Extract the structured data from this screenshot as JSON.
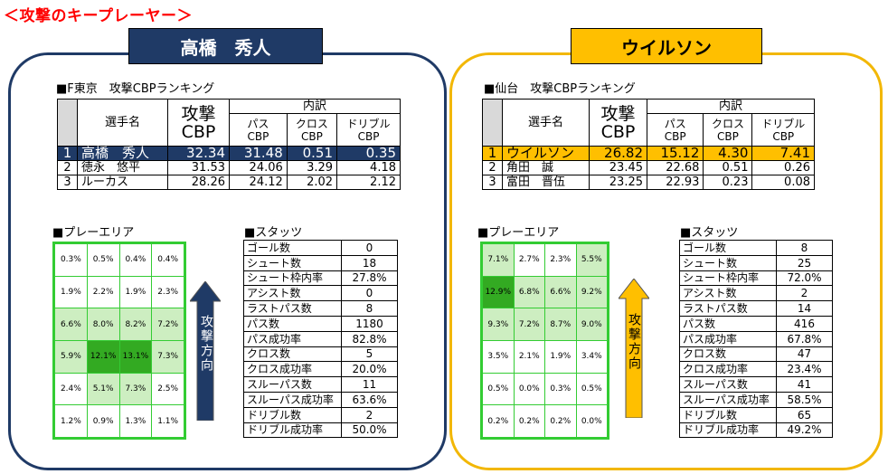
{
  "page_title": "＜攻撃のキープレーヤー＞",
  "left": {
    "name": "高橋　秀人",
    "ranking_title": "■F東京　攻撃CBPランキング",
    "table_headers": {
      "player": "選手名",
      "attack": "攻撃",
      "cbp": "CBP",
      "breakdown": "内訳",
      "pass": "パス",
      "cross": "クロス",
      "dribble": "ドリブル",
      "cbp_sub": "CBP"
    },
    "rows": [
      {
        "rank": "1",
        "name": "高橋　秀人",
        "total": "32.34",
        "pass": "31.48",
        "cross": "0.51",
        "dribble": "0.35"
      },
      {
        "rank": "2",
        "name": "徳永　悠平",
        "total": "31.53",
        "pass": "24.06",
        "cross": "3.29",
        "dribble": "4.18"
      },
      {
        "rank": "3",
        "name": "ルーカス",
        "total": "28.26",
        "pass": "24.12",
        "cross": "2.02",
        "dribble": "2.12"
      }
    ],
    "play_area_title": "■プレーエリア",
    "play_area": [
      [
        "0.3%",
        "0.5%",
        "0.4%",
        "0.4%"
      ],
      [
        "1.9%",
        "2.2%",
        "1.9%",
        "2.3%"
      ],
      [
        "6.6%",
        "8.0%",
        "8.2%",
        "7.2%"
      ],
      [
        "5.9%",
        "12.1%",
        "13.1%",
        "7.3%"
      ],
      [
        "2.4%",
        "5.1%",
        "7.3%",
        "2.5%"
      ],
      [
        "1.2%",
        "0.9%",
        "1.3%",
        "1.1%"
      ]
    ],
    "arrow_label": "攻撃方向",
    "arrow_color": "#1f3a66",
    "stats_title": "■スタッツ",
    "stats": [
      {
        "label": "ゴール数",
        "value": "0"
      },
      {
        "label": "シュート数",
        "value": "18"
      },
      {
        "label": "シュート枠内率",
        "value": "27.8%"
      },
      {
        "label": "アシスト数",
        "value": "0"
      },
      {
        "label": "ラストパス数",
        "value": "8"
      },
      {
        "label": "パス数",
        "value": "1180"
      },
      {
        "label": "パス成功率",
        "value": "82.8%"
      },
      {
        "label": "クロス数",
        "value": "5"
      },
      {
        "label": "クロス成功率",
        "value": "20.0%"
      },
      {
        "label": "スルーパス数",
        "value": "11"
      },
      {
        "label": "スルーパス成功率",
        "value": "63.6%"
      },
      {
        "label": "ドリブル数",
        "value": "2"
      },
      {
        "label": "ドリブル成功率",
        "value": "50.0%"
      }
    ]
  },
  "right": {
    "name": "ウイルソン",
    "ranking_title": "■仙台　攻撃CBPランキング",
    "table_headers": {
      "player": "選手名",
      "attack": "攻撃",
      "cbp": "CBP",
      "breakdown": "内訳",
      "pass": "パス",
      "cross": "クロス",
      "dribble": "ドリブル",
      "cbp_sub": "CBP"
    },
    "rows": [
      {
        "rank": "1",
        "name": "ウイルソン",
        "total": "26.82",
        "pass": "15.12",
        "cross": "4.30",
        "dribble": "7.41"
      },
      {
        "rank": "2",
        "name": "角田　誠",
        "total": "23.45",
        "pass": "22.68",
        "cross": "0.51",
        "dribble": "0.26"
      },
      {
        "rank": "3",
        "name": "富田　晋伍",
        "total": "23.25",
        "pass": "22.93",
        "cross": "0.23",
        "dribble": "0.08"
      }
    ],
    "play_area_title": "■プレーエリア",
    "play_area": [
      [
        "7.1%",
        "2.7%",
        "2.3%",
        "5.5%"
      ],
      [
        "12.9%",
        "6.8%",
        "6.6%",
        "9.2%"
      ],
      [
        "9.3%",
        "7.2%",
        "8.7%",
        "9.0%"
      ],
      [
        "3.5%",
        "2.1%",
        "1.9%",
        "3.4%"
      ],
      [
        "0.5%",
        "0.0%",
        "0.3%",
        "0.5%"
      ],
      [
        "0.2%",
        "0.2%",
        "0.2%",
        "0.0%"
      ]
    ],
    "arrow_label": "攻撃方向",
    "arrow_color": "#ffbf00",
    "stats_title": "■スタッツ",
    "stats": [
      {
        "label": "ゴール数",
        "value": "8"
      },
      {
        "label": "シュート数",
        "value": "25"
      },
      {
        "label": "シュート枠内率",
        "value": "72.0%"
      },
      {
        "label": "アシスト数",
        "value": "2"
      },
      {
        "label": "ラストパス数",
        "value": "14"
      },
      {
        "label": "パス数",
        "value": "416"
      },
      {
        "label": "パス成功率",
        "value": "67.8%"
      },
      {
        "label": "クロス数",
        "value": "47"
      },
      {
        "label": "クロス成功率",
        "value": "23.4%"
      },
      {
        "label": "スルーパス数",
        "value": "41"
      },
      {
        "label": "スルーパス成功率",
        "value": "58.5%"
      },
      {
        "label": "ドリブル数",
        "value": "65"
      },
      {
        "label": "ドリブル成功率",
        "value": "49.2%"
      }
    ]
  }
}
